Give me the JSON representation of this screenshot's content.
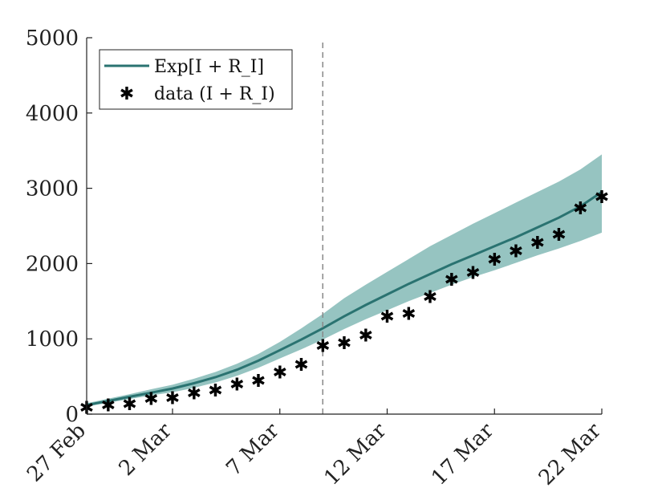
{
  "chart_data": {
    "type": "line",
    "title": "",
    "xlabel": "",
    "ylabel": "",
    "x_ticks": [
      "27 Feb",
      "2 Mar",
      "7 Mar",
      "12 Mar",
      "17 Mar",
      "22 Mar"
    ],
    "x_tick_days": [
      0,
      4,
      9,
      14,
      19,
      24
    ],
    "xlim": [
      0,
      24
    ],
    "y_ticks": [
      0,
      1000,
      2000,
      3000,
      4000,
      5000
    ],
    "ylim": [
      0,
      5000
    ],
    "vertical_line_day": 11,
    "legend_position": "top-left",
    "colors": {
      "model": "#2a7371",
      "band": "#96c4c1",
      "data": "#000000",
      "vline": "#888888"
    },
    "series": [
      {
        "name": "Exp[I + R_I]",
        "legend_label": "Exp[I + R_I]",
        "kind": "line",
        "x": [
          0,
          1,
          2,
          3,
          4,
          5,
          6,
          7,
          8,
          9,
          10,
          11,
          12,
          13,
          14,
          15,
          16,
          17,
          18,
          19,
          20,
          21,
          22,
          23,
          24
        ],
        "values": [
          120,
          175,
          230,
          285,
          340,
          410,
          490,
          590,
          710,
          850,
          990,
          1140,
          1300,
          1450,
          1590,
          1730,
          1860,
          1990,
          2110,
          2230,
          2350,
          2480,
          2610,
          2760,
          2950
        ],
        "lower": [
          100,
          150,
          200,
          250,
          290,
          350,
          420,
          510,
          615,
          740,
          860,
          990,
          1130,
          1260,
          1380,
          1500,
          1610,
          1720,
          1820,
          1910,
          2010,
          2110,
          2200,
          2300,
          2410
        ],
        "upper": [
          145,
          205,
          265,
          330,
          390,
          470,
          560,
          670,
          800,
          960,
          1140,
          1330,
          1540,
          1720,
          1890,
          2060,
          2230,
          2380,
          2530,
          2670,
          2810,
          2950,
          3090,
          3250,
          3450
        ]
      },
      {
        "name": "data (I + R_I)",
        "legend_label": "data (I + R_I)",
        "kind": "scatter",
        "x": [
          0,
          1,
          2,
          3,
          4,
          5,
          6,
          7,
          8,
          9,
          10,
          11,
          12,
          13,
          14,
          15,
          16,
          17,
          18,
          19,
          20,
          21,
          22,
          23,
          24
        ],
        "values": [
          90,
          120,
          140,
          210,
          220,
          280,
          320,
          400,
          450,
          560,
          660,
          910,
          950,
          1050,
          1300,
          1340,
          1560,
          1790,
          1880,
          2060,
          2170,
          2280,
          2390,
          2740,
          2890
        ]
      }
    ]
  }
}
